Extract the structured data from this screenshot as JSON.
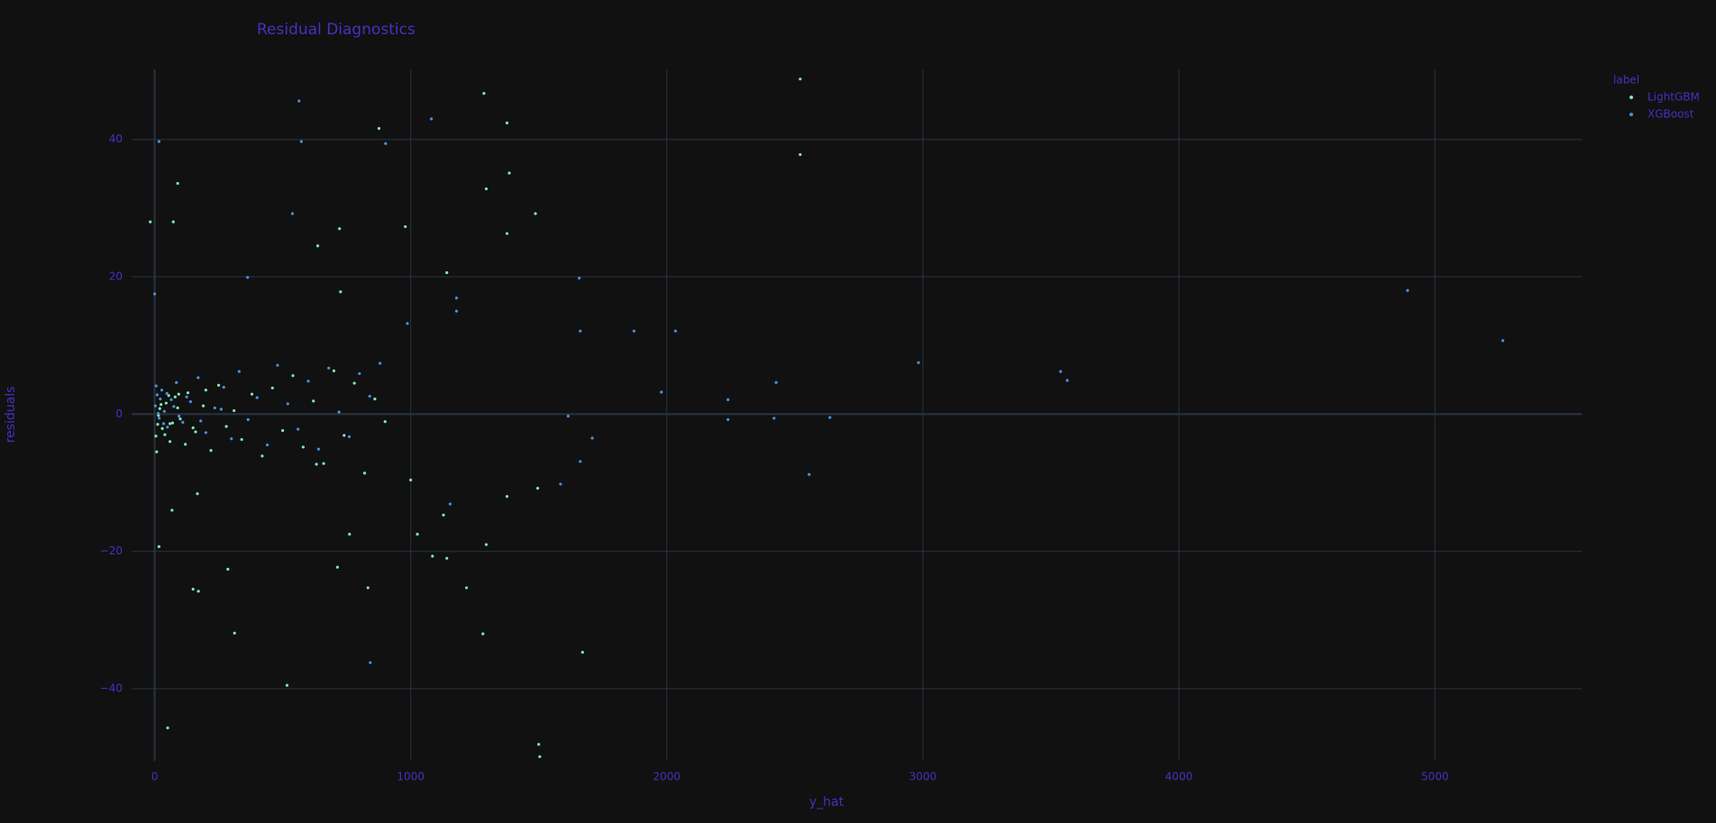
{
  "chart_data": {
    "type": "scatter",
    "title": "Residual Diagnostics",
    "x_label": "y_hat",
    "y_label": "residuals",
    "legend_title": "label",
    "legend_position": "top-right-outside",
    "grid": true,
    "xlim": [
      -90,
      5573
    ],
    "ylim": [
      -50.5,
      50.2
    ],
    "xticks": [
      0,
      1000,
      2000,
      3000,
      4000,
      5000
    ],
    "yticks": [
      {
        "value": -40,
        "label": "−40"
      },
      {
        "value": -20,
        "label": "−20"
      },
      0,
      20,
      40
    ],
    "series": [
      {
        "name": "LightGBM",
        "color": "#80e6b4",
        "x": [
          5,
          12,
          20,
          30,
          45,
          60,
          80,
          100,
          130,
          160,
          190,
          220,
          250,
          280,
          310,
          340,
          380,
          420,
          460,
          500,
          540,
          580,
          620,
          660,
          700,
          740,
          780,
          820,
          860,
          900,
          8,
          15,
          25,
          40,
          55,
          70,
          90,
          120,
          150,
          200,
          1385,
          2521,
          2521,
          1376,
          1487,
          90,
          73,
          -17,
          726,
          632,
          51,
          1500,
          1504,
          1671,
          312,
          517,
          1295,
          1141,
          979,
          722,
          637,
          876,
          1286,
          1376,
          171,
          150,
          286,
          761,
          714,
          833,
          1085,
          1141,
          1218,
          1282,
          1295,
          1026,
          1376,
          1496,
          1000,
          1128,
          17,
          68,
          167,
          60,
          94
        ],
        "y": [
          -3.2,
          -1.5,
          0.8,
          -2.1,
          1.6,
          -4.0,
          2.5,
          -0.7,
          3.1,
          -2.6,
          1.2,
          -5.3,
          4.2,
          -1.8,
          0.5,
          -3.7,
          2.9,
          -6.1,
          3.8,
          -2.4,
          5.6,
          -4.8,
          1.9,
          -7.2,
          6.3,
          -3.1,
          4.5,
          -8.6,
          2.2,
          -1.1,
          -5.5,
          -0.2,
          1.4,
          -3.0,
          2.7,
          -1.3,
          0.9,
          -4.4,
          -2.0,
          3.5,
          35.1,
          48.8,
          37.8,
          26.3,
          29.2,
          33.6,
          28.0,
          28.0,
          17.8,
          -7.3,
          -45.7,
          -48.1,
          -49.9,
          -34.7,
          -31.9,
          -39.5,
          32.8,
          20.6,
          27.3,
          27.0,
          24.5,
          41.6,
          46.7,
          42.4,
          -25.8,
          -25.5,
          -22.6,
          -17.5,
          -22.3,
          -25.3,
          -20.7,
          -21.0,
          -25.3,
          -32.0,
          -19.0,
          -17.5,
          -12.0,
          -10.8,
          -9.6,
          -14.7,
          -19.3,
          -14.0,
          -11.6,
          -1.4,
          2.9
        ]
      },
      {
        "name": "XGBoost",
        "color": "#4b8fdb",
        "x": [
          3,
          10,
          18,
          28,
          38,
          50,
          65,
          85,
          110,
          140,
          170,
          200,
          235,
          270,
          300,
          330,
          365,
          400,
          440,
          480,
          520,
          560,
          600,
          640,
          680,
          720,
          760,
          800,
          840,
          880,
          6,
          14,
          22,
          35,
          48,
          75,
          95,
          125,
          180,
          260,
          564,
          573,
          1081,
          902,
          538,
          17,
          4893,
          5265,
          2983,
          3538,
          3564,
          2034,
          1872,
          1979,
          2239,
          2239,
          2427,
          2419,
          2637,
          2556,
          1709,
          1615,
          1662,
          1585,
          1658,
          1662,
          842,
          1179,
          1179,
          363,
          0,
          987,
          1154
        ],
        "y": [
          1.2,
          2.8,
          -0.6,
          3.5,
          0.4,
          -1.9,
          2.1,
          4.6,
          -1.2,
          1.8,
          5.3,
          -2.7,
          0.9,
          3.9,
          -3.6,
          6.2,
          -0.8,
          2.4,
          -4.5,
          7.1,
          1.5,
          -2.2,
          4.8,
          -5.1,
          6.7,
          0.3,
          -3.3,
          5.9,
          2.6,
          7.4,
          4.1,
          0.1,
          2.2,
          -1.4,
          3.0,
          1.1,
          -0.3,
          2.5,
          -1.0,
          0.7,
          45.6,
          39.7,
          43.0,
          39.4,
          29.2,
          39.7,
          18.0,
          10.7,
          7.5,
          6.2,
          4.9,
          12.1,
          12.1,
          3.2,
          2.1,
          -0.8,
          4.6,
          -0.6,
          -0.5,
          -8.8,
          -3.5,
          -0.3,
          -6.9,
          -10.2,
          19.8,
          12.1,
          -36.2,
          15.0,
          16.9,
          19.9,
          17.5,
          13.2,
          -13.1
        ]
      }
    ]
  }
}
